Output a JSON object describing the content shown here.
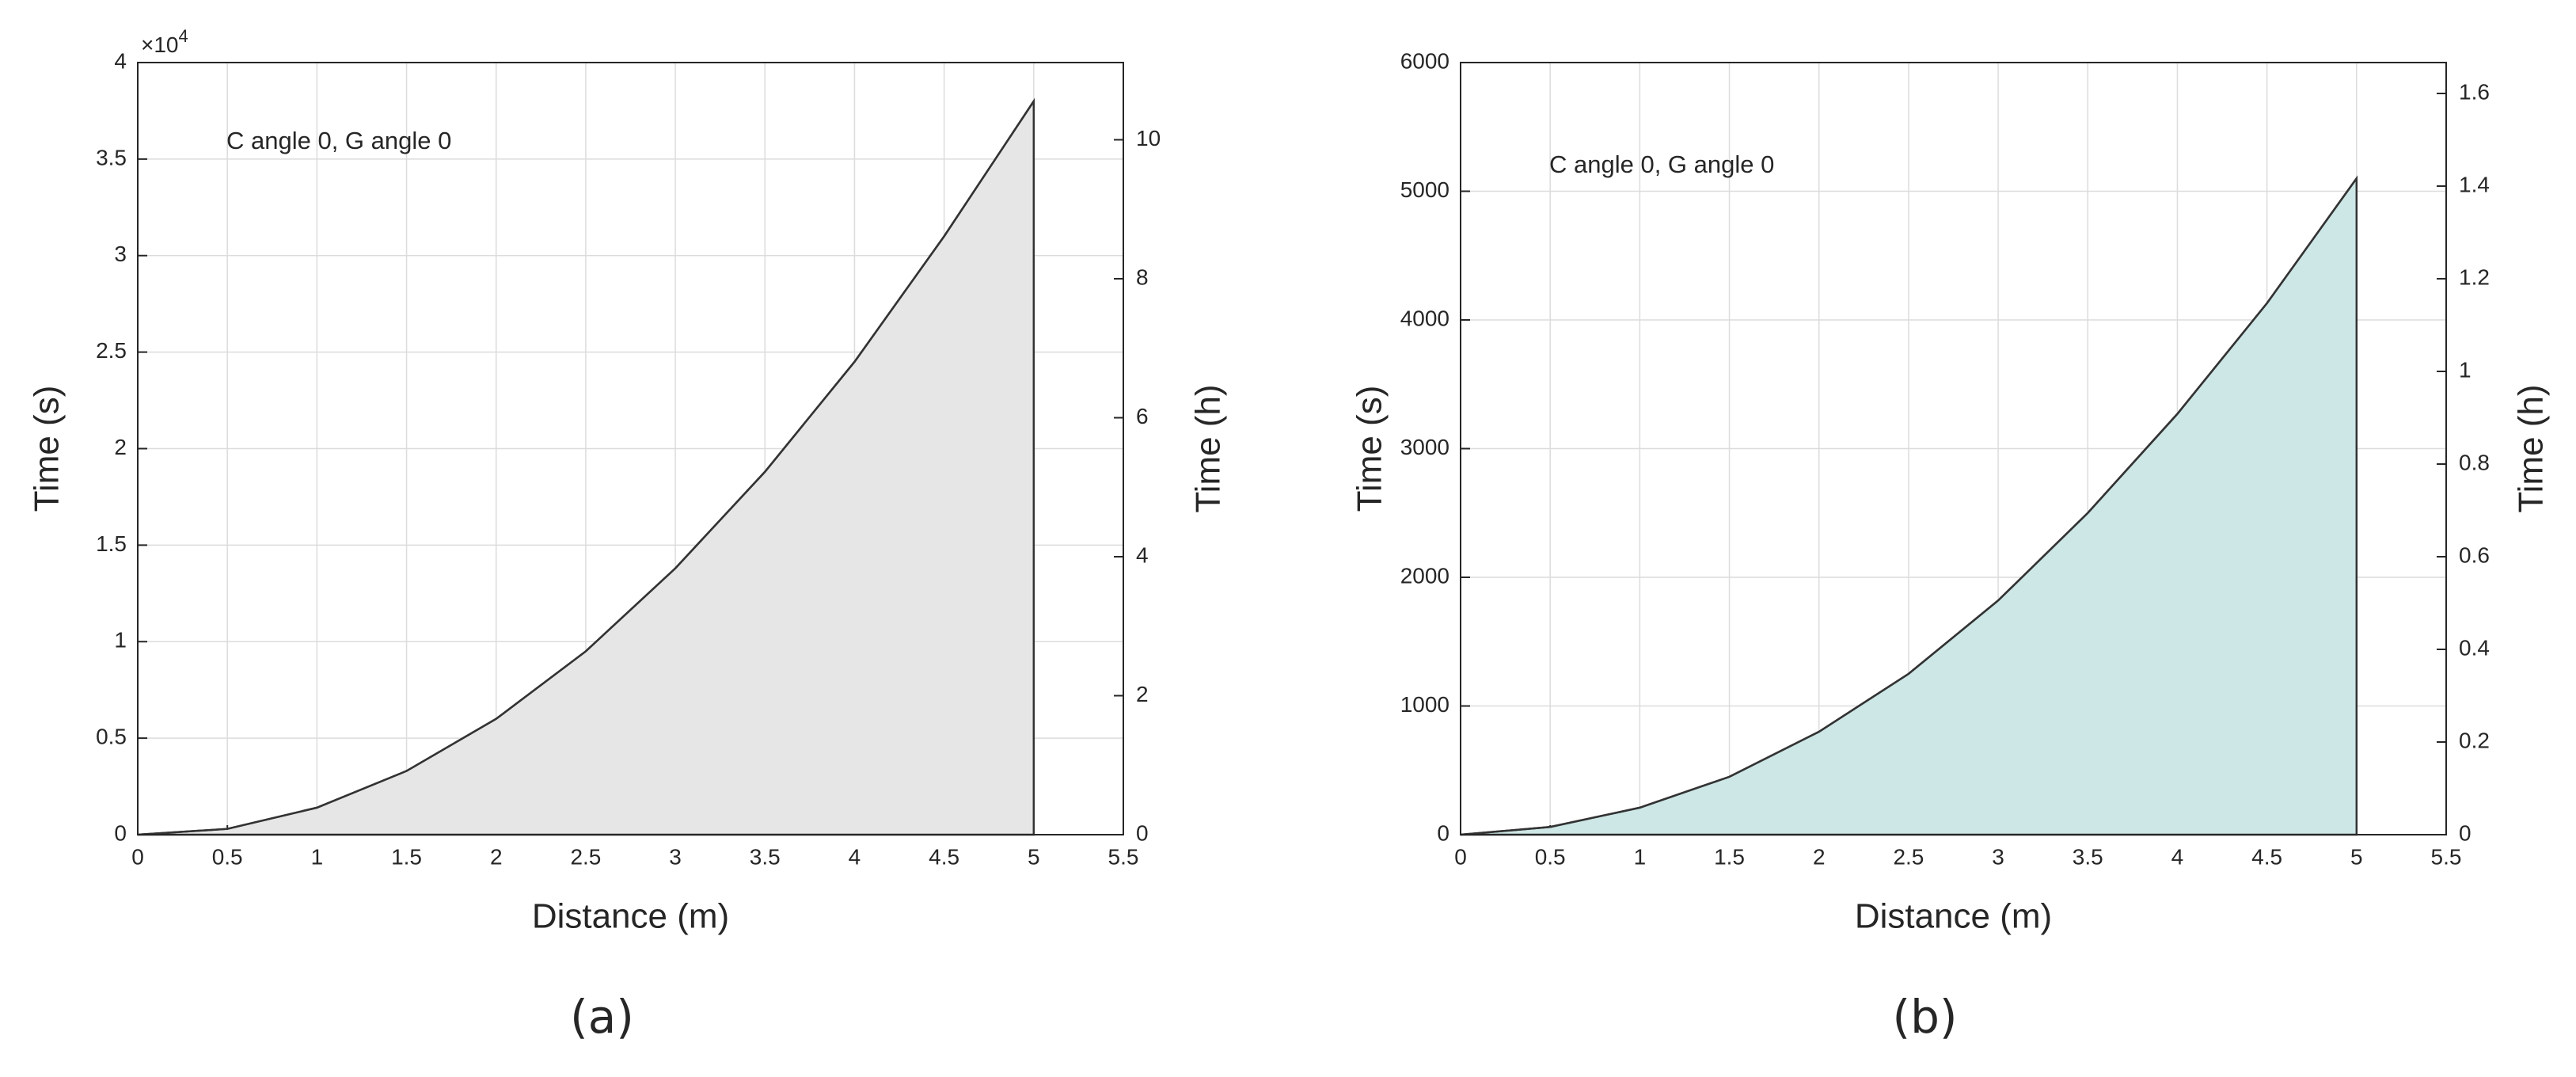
{
  "chart_data": [
    {
      "type": "area",
      "annotation": "C angle 0, G angle 0",
      "x_label": "Distance (m)",
      "y_label": "Time (s)",
      "y2_label": "Time (h)",
      "y_offset_label": {
        "base": "×10",
        "exponent": "4"
      },
      "caption": "(a)",
      "x": [
        0,
        0.5,
        1,
        1.5,
        2,
        2.5,
        3,
        3.5,
        4,
        4.5,
        5
      ],
      "values": [
        0,
        300,
        1400,
        3300,
        6000,
        9500,
        13800,
        18800,
        24500,
        31000,
        38000
      ],
      "color": "#e6e6e6",
      "line_color": "#333333",
      "xlim": [
        0,
        5.5
      ],
      "xticks": [
        0,
        0.5,
        1,
        1.5,
        2,
        2.5,
        3,
        3.5,
        4,
        4.5,
        5,
        5.5
      ],
      "ylim": [
        0,
        40000
      ],
      "yticks": [
        {
          "value": 0,
          "label": "0"
        },
        {
          "value": 5000,
          "label": "0.5"
        },
        {
          "value": 10000,
          "label": "1"
        },
        {
          "value": 15000,
          "label": "1.5"
        },
        {
          "value": 20000,
          "label": "2"
        },
        {
          "value": 25000,
          "label": "2.5"
        },
        {
          "value": 30000,
          "label": "3"
        },
        {
          "value": 35000,
          "label": "3.5"
        },
        {
          "value": 40000,
          "label": "4"
        }
      ],
      "y2lim": [
        0,
        11.111
      ],
      "y2ticks": [
        0,
        2,
        4,
        6,
        8,
        10
      ],
      "grid": true
    },
    {
      "type": "area",
      "annotation": "C angle 0, G angle 0",
      "x_label": "Distance (m)",
      "y_label": "Time (s)",
      "y2_label": "Time (h)",
      "caption": "(b)",
      "x": [
        0,
        0.5,
        1,
        1.5,
        2,
        2.5,
        3,
        3.5,
        4,
        4.5,
        5
      ],
      "values": [
        0,
        60,
        210,
        450,
        800,
        1250,
        1820,
        2500,
        3270,
        4130,
        5100
      ],
      "color": "#cde6e6",
      "line_color": "#333333",
      "xlim": [
        0,
        5.5
      ],
      "xticks": [
        0,
        0.5,
        1,
        1.5,
        2,
        2.5,
        3,
        3.5,
        4,
        4.5,
        5,
        5.5
      ],
      "ylim": [
        0,
        6000
      ],
      "yticks": [
        0,
        1000,
        2000,
        3000,
        4000,
        5000,
        6000
      ],
      "y2lim": [
        0,
        1.6667
      ],
      "y2ticks": [
        0,
        0.2,
        0.4,
        0.6,
        0.8,
        1,
        1.2,
        1.4,
        1.6
      ],
      "grid": true
    }
  ]
}
